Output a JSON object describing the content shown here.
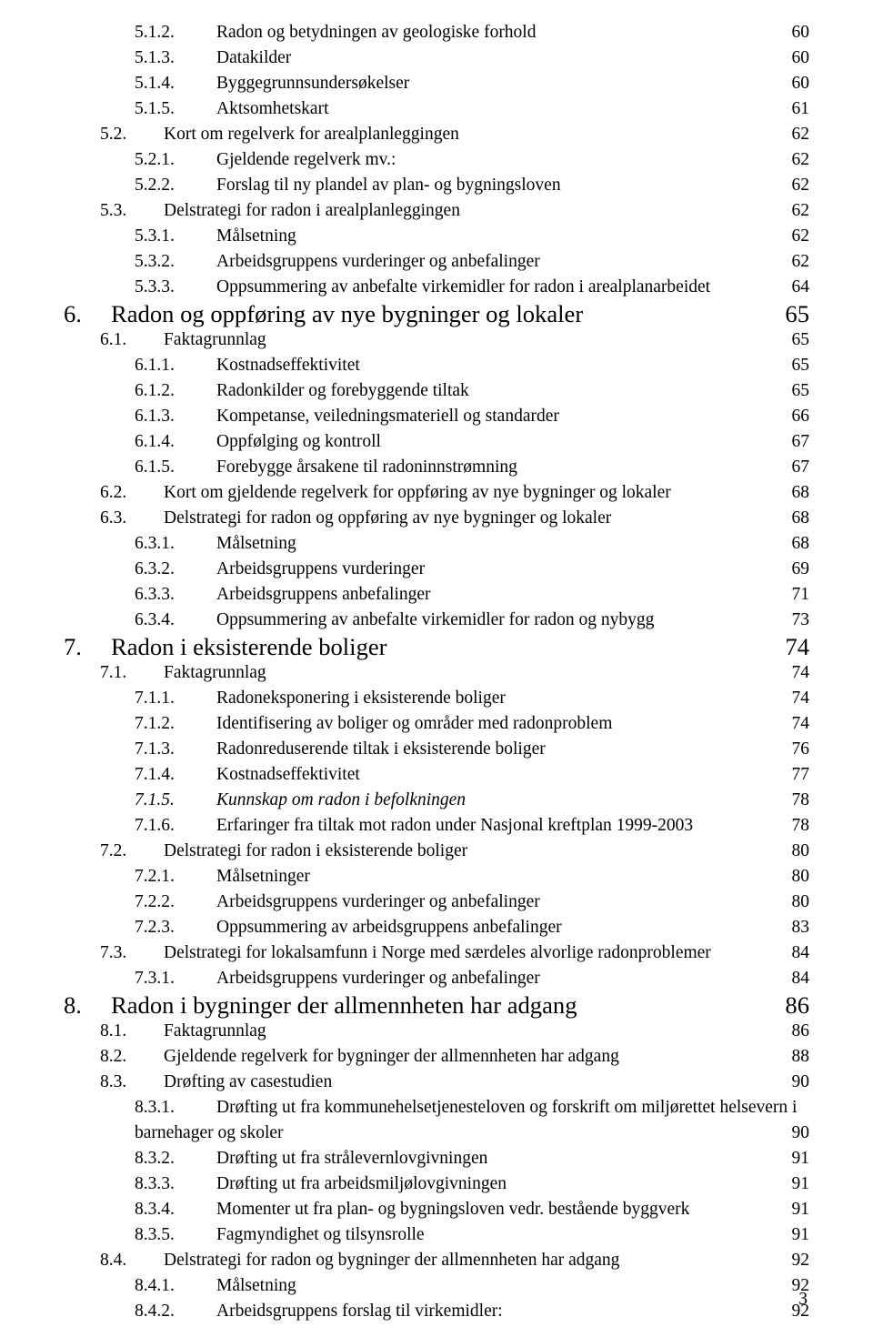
{
  "page_number": "3",
  "entries": [
    {
      "level": 3,
      "num": "5.1.2.",
      "title": "Radon og betydningen av geologiske forhold",
      "page": "60"
    },
    {
      "level": 3,
      "num": "5.1.3.",
      "title": "Datakilder",
      "page": "60"
    },
    {
      "level": 3,
      "num": "5.1.4.",
      "title": "Byggegrunnsundersøkelser",
      "page": "60"
    },
    {
      "level": 3,
      "num": "5.1.5.",
      "title": "Aktsomhetskart",
      "page": "61"
    },
    {
      "level": 2,
      "num": "5.2.",
      "title": "Kort om regelverk for arealplanleggingen",
      "page": "62"
    },
    {
      "level": 3,
      "num": "5.2.1.",
      "title": "Gjeldende regelverk mv.:",
      "page": "62"
    },
    {
      "level": 3,
      "num": "5.2.2.",
      "title": "Forslag til ny plandel av plan- og bygningsloven",
      "page": "62"
    },
    {
      "level": 2,
      "num": "5.3.",
      "title": "Delstrategi for radon i arealplanleggingen",
      "page": "62"
    },
    {
      "level": 3,
      "num": "5.3.1.",
      "title": "Målsetning",
      "page": "62"
    },
    {
      "level": 3,
      "num": "5.3.2.",
      "title": "Arbeidsgruppens vurderinger og anbefalinger",
      "page": "62"
    },
    {
      "level": 3,
      "num": "5.3.3.",
      "title": "Oppsummering av anbefalte virkemidler for radon i arealplanarbeidet",
      "page": "64"
    },
    {
      "level": 1,
      "num": "6.",
      "title": "Radon og oppføring av nye bygninger og lokaler",
      "page": "65"
    },
    {
      "level": 2,
      "num": "6.1.",
      "title": "Faktagrunnlag",
      "page": "65"
    },
    {
      "level": 3,
      "num": "6.1.1.",
      "title": "Kostnadseffektivitet",
      "page": "65"
    },
    {
      "level": 3,
      "num": "6.1.2.",
      "title": "Radonkilder og forebyggende tiltak",
      "page": "65"
    },
    {
      "level": 3,
      "num": "6.1.3.",
      "title": "Kompetanse, veiledningsmateriell og standarder",
      "page": "66"
    },
    {
      "level": 3,
      "num": "6.1.4.",
      "title": "Oppfølging og kontroll",
      "page": "67"
    },
    {
      "level": 3,
      "num": "6.1.5.",
      "title": "Forebygge årsakene til radoninnstrømning",
      "page": "67"
    },
    {
      "level": 2,
      "num": "6.2.",
      "title": "Kort om gjeldende regelverk for oppføring av nye bygninger og lokaler",
      "page": "68"
    },
    {
      "level": 2,
      "num": "6.3.",
      "title": "Delstrategi for radon og oppføring av nye bygninger og lokaler",
      "page": "68"
    },
    {
      "level": 3,
      "num": "6.3.1.",
      "title": "Målsetning",
      "page": "68"
    },
    {
      "level": 3,
      "num": "6.3.2.",
      "title": "Arbeidsgruppens vurderinger",
      "page": "69"
    },
    {
      "level": 3,
      "num": "6.3.3.",
      "title": "Arbeidsgruppens anbefalinger",
      "page": "71"
    },
    {
      "level": 3,
      "num": "6.3.4.",
      "title": "Oppsummering av anbefalte virkemidler for radon og nybygg",
      "page": "73"
    },
    {
      "level": 1,
      "num": "7.",
      "title": "Radon i eksisterende boliger",
      "page": "74"
    },
    {
      "level": 2,
      "num": "7.1.",
      "title": "Faktagrunnlag",
      "page": "74"
    },
    {
      "level": 3,
      "num": "7.1.1.",
      "title": "Radoneksponering i eksisterende boliger",
      "page": "74"
    },
    {
      "level": 3,
      "num": "7.1.2.",
      "title": "Identifisering av boliger og områder med radonproblem",
      "page": "74"
    },
    {
      "level": 3,
      "num": "7.1.3.",
      "title": "Radonreduserende tiltak i eksisterende boliger",
      "page": "76"
    },
    {
      "level": 3,
      "num": "7.1.4.",
      "title": "Kostnadseffektivitet",
      "page": "77"
    },
    {
      "level": 3,
      "num": "7.1.5.",
      "title": "Kunnskap om radon i befolkningen",
      "page": "78",
      "italic": true
    },
    {
      "level": 3,
      "num": "7.1.6.",
      "title": "Erfaringer fra tiltak mot radon under Nasjonal kreftplan 1999-2003",
      "page": "78"
    },
    {
      "level": 2,
      "num": "7.2.",
      "title": "Delstrategi for radon i eksisterende boliger",
      "page": "80"
    },
    {
      "level": 3,
      "num": "7.2.1.",
      "title": "Målsetninger",
      "page": "80"
    },
    {
      "level": 3,
      "num": "7.2.2.",
      "title": "Arbeidsgruppens vurderinger og anbefalinger",
      "page": "80"
    },
    {
      "level": 3,
      "num": "7.2.3.",
      "title": "Oppsummering av arbeidsgruppens anbefalinger",
      "page": "83"
    },
    {
      "level": 2,
      "num": "7.3.",
      "title": "Delstrategi for lokalsamfunn i Norge med særdeles alvorlige radonproblemer",
      "page": "84"
    },
    {
      "level": 3,
      "num": "7.3.1.",
      "title": "Arbeidsgruppens vurderinger og anbefalinger",
      "page": "84"
    },
    {
      "level": 1,
      "num": "8.",
      "title": "Radon i bygninger der allmennheten har adgang",
      "page": "86"
    },
    {
      "level": 2,
      "num": "8.1.",
      "title": "Faktagrunnlag",
      "page": "86"
    },
    {
      "level": 2,
      "num": "8.2.",
      "title": "Gjeldende regelverk for bygninger der allmennheten har adgang",
      "page": "88"
    },
    {
      "level": 2,
      "num": "8.3.",
      "title": "Drøfting av casestudien",
      "page": "90"
    },
    {
      "level": 3,
      "num": "8.3.1.",
      "title_a": "Drøfting ut fra kommunehelsetjenesteloven og forskrift om miljørettet helsevern i",
      "title_b": "barnehager og skoler",
      "page": "90",
      "wrap": true
    },
    {
      "level": 3,
      "num": "8.3.2.",
      "title": "Drøfting ut fra strålevernlovgivningen",
      "page": "91"
    },
    {
      "level": 3,
      "num": "8.3.3.",
      "title": "Drøfting ut fra arbeidsmiljølovgivningen",
      "page": "91"
    },
    {
      "level": 3,
      "num": "8.3.4.",
      "title": "Momenter ut fra plan- og bygningsloven vedr. bestående byggverk",
      "page": "91"
    },
    {
      "level": 3,
      "num": "8.3.5.",
      "title": "Fagmyndighet og tilsynsrolle",
      "page": "91"
    },
    {
      "level": 2,
      "num": "8.4.",
      "title": "Delstrategi for radon og bygninger der allmennheten har adgang",
      "page": "92"
    },
    {
      "level": 3,
      "num": "8.4.1.",
      "title": "Målsetning",
      "page": "92"
    },
    {
      "level": 3,
      "num": "8.4.2.",
      "title": "Arbeidsgruppens forslag til virkemidler:",
      "page": "92"
    }
  ]
}
